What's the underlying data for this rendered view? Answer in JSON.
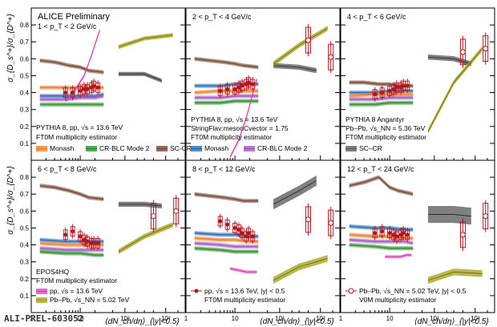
{
  "figure": {
    "collaboration": "ALICE Preliminary",
    "id_label": "ALI-PREL-603052",
    "y_axis_label": "σ_{D_s^+}/σ_{D^+}",
    "x_axis_label": "⟨dN_ch/dη⟩_{|y|<0.5}",
    "colors": {
      "data": "#b4141e",
      "monash": "#f0781e",
      "crblc": "#228b22",
      "sccr": "#6e3c28",
      "fmonash": "#1e64b4",
      "fcrblc": "#9b50be",
      "angantyr": "#555555",
      "epos_pp": "#dc3cb4",
      "epos_pbpb": "#a0a014"
    }
  },
  "chart_data": [
    {
      "type": "line",
      "panel": 1,
      "pt_label": "1 < p_T < 2 GeV/c",
      "ylim": [
        0.0,
        0.9
      ],
      "xlim_pp": [
        1,
        30
      ],
      "xlim_pbpb": [
        30,
        3000
      ],
      "x_scale": "log",
      "data_pp": {
        "x": [
          5,
          7,
          10,
          12,
          14,
          17,
          19,
          23
        ],
        "y": [
          0.4,
          0.4,
          0.41,
          0.42,
          0.42,
          0.43,
          0.44,
          0.43
        ]
      },
      "data_pbpb": {
        "x": [],
        "y": []
      },
      "pp_models": [
        {
          "key": "sccr",
          "x": [
            1.5,
            3,
            6,
            10,
            15,
            30
          ],
          "y": [
            0.59,
            0.58,
            0.56,
            0.55,
            0.53,
            0.52
          ]
        },
        {
          "key": "monash",
          "x": [
            1.5,
            5,
            10,
            20,
            30
          ],
          "y": [
            0.43,
            0.43,
            0.43,
            0.43,
            0.43
          ]
        },
        {
          "key": "crblc",
          "x": [
            1.5,
            5,
            10,
            20,
            30
          ],
          "y": [
            0.33,
            0.33,
            0.33,
            0.33,
            0.33
          ]
        },
        {
          "key": "fmonash",
          "x": [
            1.5,
            5,
            10,
            20,
            30
          ],
          "y": [
            0.38,
            0.38,
            0.38,
            0.38,
            0.39
          ]
        },
        {
          "key": "fcrblc",
          "x": [
            1.5,
            5,
            10,
            20,
            30
          ],
          "y": [
            0.36,
            0.36,
            0.37,
            0.37,
            0.38
          ]
        },
        {
          "key": "epos_pp",
          "x": [
            5,
            8,
            12,
            17,
            25
          ],
          "y": [
            0.35,
            0.42,
            0.5,
            0.62,
            0.77
          ]
        }
      ],
      "pbpb_models": [
        {
          "key": "angantyr",
          "x": [
            70,
            300,
            800
          ],
          "y": [
            0.51,
            0.51,
            0.47
          ],
          "band": 0.012
        },
        {
          "key": "epos_pbpb",
          "x": [
            70,
            300,
            1500
          ],
          "y": [
            0.67,
            0.72,
            0.74
          ],
          "band": 0.012
        }
      ],
      "annotations": []
    },
    {
      "type": "line",
      "panel": 2,
      "pt_label": "2 < p_T < 4 GeV/c",
      "ylim": [
        0.0,
        0.9
      ],
      "xlim_pp": [
        1,
        30
      ],
      "xlim_pbpb": [
        30,
        3000
      ],
      "x_scale": "log",
      "data_pp": {
        "x": [
          5,
          7,
          10,
          12,
          14,
          17,
          19,
          23
        ],
        "y": [
          0.41,
          0.42,
          0.42,
          0.43,
          0.44,
          0.45,
          0.46,
          0.45
        ]
      },
      "data_pbpb": {
        "x": [
          500,
          1800
        ],
        "y": [
          0.71,
          0.61
        ]
      },
      "pp_models": [
        {
          "key": "sccr",
          "x": [
            1.5,
            3,
            6,
            10,
            15,
            30
          ],
          "y": [
            0.6,
            0.59,
            0.58,
            0.57,
            0.56,
            0.55
          ]
        },
        {
          "key": "fmonash",
          "x": [
            1.5,
            5,
            10,
            20,
            30
          ],
          "y": [
            0.44,
            0.44,
            0.45,
            0.45,
            0.45
          ]
        },
        {
          "key": "monash",
          "x": [
            1.5,
            5,
            10,
            20,
            30
          ],
          "y": [
            0.4,
            0.41,
            0.41,
            0.41,
            0.41
          ]
        },
        {
          "key": "fcrblc",
          "x": [
            1.5,
            5,
            10,
            20,
            30
          ],
          "y": [
            0.37,
            0.37,
            0.38,
            0.38,
            0.38
          ]
        },
        {
          "key": "crblc",
          "x": [
            1.5,
            5,
            10,
            20,
            30
          ],
          "y": [
            0.34,
            0.34,
            0.35,
            0.35,
            0.35
          ]
        },
        {
          "key": "epos_pp",
          "x": [
            8,
            12,
            17,
            22,
            28
          ],
          "y": [
            0.02,
            0.12,
            0.25,
            0.37,
            0.48
          ]
        }
      ],
      "pbpb_models": [
        {
          "key": "angantyr",
          "x": [
            70,
            300,
            800
          ],
          "y": [
            0.56,
            0.55,
            0.53
          ],
          "band": 0.015
        },
        {
          "key": "epos_pbpb",
          "x": [
            70,
            300,
            1500
          ],
          "y": [
            0.57,
            0.68,
            0.78
          ],
          "band": 0.015
        }
      ],
      "annotations": []
    },
    {
      "type": "line",
      "panel": 3,
      "pt_label": "4 < p_T < 6 GeV/c",
      "ylim": [
        0.0,
        0.9
      ],
      "xlim_pp": [
        1,
        30
      ],
      "xlim_pbpb": [
        30,
        3000
      ],
      "x_scale": "log",
      "data_pp": {
        "x": [
          5,
          7,
          10,
          12,
          14,
          17,
          19,
          23
        ],
        "y": [
          0.39,
          0.4,
          0.41,
          0.42,
          0.43,
          0.43,
          0.44,
          0.44
        ]
      },
      "data_pbpb": {
        "x": [
          500,
          1800
        ],
        "y": [
          0.64,
          0.66
        ]
      },
      "pp_models": [
        {
          "key": "sccr",
          "x": [
            1.5,
            3,
            6,
            10,
            15,
            30
          ],
          "y": [
            0.46,
            0.46,
            0.45,
            0.45,
            0.44,
            0.44
          ]
        },
        {
          "key": "fmonash",
          "x": [
            1.5,
            5,
            10,
            20,
            30
          ],
          "y": [
            0.4,
            0.4,
            0.41,
            0.41,
            0.41
          ]
        },
        {
          "key": "monash",
          "x": [
            1.5,
            5,
            10,
            20,
            30
          ],
          "y": [
            0.38,
            0.39,
            0.39,
            0.39,
            0.39
          ]
        },
        {
          "key": "fcrblc",
          "x": [
            1.5,
            5,
            10,
            20,
            30
          ],
          "y": [
            0.36,
            0.36,
            0.37,
            0.37,
            0.37
          ]
        },
        {
          "key": "crblc",
          "x": [
            1.5,
            5,
            10,
            20,
            30
          ],
          "y": [
            0.33,
            0.33,
            0.34,
            0.34,
            0.34
          ]
        }
      ],
      "pbpb_models": [
        {
          "key": "angantyr",
          "x": [
            70,
            300,
            800
          ],
          "y": [
            0.61,
            0.6,
            0.57
          ],
          "band": 0.015
        },
        {
          "key": "epos_pbpb",
          "x": [
            70,
            300,
            1500
          ],
          "y": [
            0.17,
            0.46,
            0.66
          ],
          "band": 0.015
        }
      ],
      "annotations": []
    },
    {
      "type": "line",
      "panel": 4,
      "pt_label": "6 < p_T < 8 GeV/c",
      "ylim": [
        0.0,
        0.9
      ],
      "xlim_pp": [
        1,
        30
      ],
      "xlim_pbpb": [
        30,
        3000
      ],
      "x_scale": "log",
      "data_pp": {
        "x": [
          5,
          7,
          10,
          12,
          14,
          17,
          19,
          23
        ],
        "y": [
          0.46,
          0.48,
          0.45,
          0.43,
          0.42,
          0.41,
          0.41,
          0.41
        ]
      },
      "data_pbpb": {
        "x": [
          500,
          1800
        ],
        "y": [
          0.57,
          0.6
        ]
      },
      "pp_models": [
        {
          "key": "sccr",
          "x": [
            1.5,
            3,
            6,
            10,
            15,
            30
          ],
          "y": [
            0.75,
            0.74,
            0.72,
            0.7,
            0.68,
            0.67
          ]
        },
        {
          "key": "fmonash",
          "x": [
            1.5,
            5,
            10,
            20,
            30
          ],
          "y": [
            0.43,
            0.42,
            0.42,
            0.42,
            0.42
          ]
        },
        {
          "key": "monash",
          "x": [
            1.5,
            5,
            10,
            20,
            30
          ],
          "y": [
            0.41,
            0.4,
            0.4,
            0.4,
            0.4
          ]
        },
        {
          "key": "fcrblc",
          "x": [
            1.5,
            5,
            10,
            20,
            30
          ],
          "y": [
            0.38,
            0.37,
            0.37,
            0.37,
            0.37
          ]
        },
        {
          "key": "crblc",
          "x": [
            1.5,
            5,
            10,
            20,
            30
          ],
          "y": [
            0.36,
            0.35,
            0.35,
            0.34,
            0.34
          ]
        }
      ],
      "pbpb_models": [
        {
          "key": "angantyr",
          "x": [
            70,
            300,
            800
          ],
          "y": [
            0.64,
            0.64,
            0.63
          ],
          "band": 0.015
        },
        {
          "key": "epos_pbpb",
          "x": [
            70,
            300,
            1500
          ],
          "y": [
            0.36,
            0.45,
            0.52
          ],
          "band": 0.015
        }
      ],
      "annotations": [
        "EPOS4HQ",
        "FT0M multiplicity estimator"
      ],
      "legend": [
        {
          "key": "epos_pp",
          "label": "pp, √s = 13.6 TeV"
        },
        {
          "key": "epos_pbpb",
          "label": "Pb–Pb, √s_NN = 5.02 TeV"
        }
      ]
    },
    {
      "type": "line",
      "panel": 5,
      "pt_label": "8 < p_T < 12 GeV/c",
      "ylim": [
        0.0,
        0.9
      ],
      "xlim_pp": [
        1,
        30
      ],
      "xlim_pbpb": [
        30,
        3000
      ],
      "x_scale": "log",
      "data_pp": {
        "x": [
          5,
          7,
          10,
          12,
          14,
          17,
          19,
          23
        ],
        "y": [
          0.54,
          0.52,
          0.5,
          0.49,
          0.47,
          0.45,
          0.47,
          0.45
        ]
      },
      "data_pbpb": {
        "x": [
          500,
          1800
        ],
        "y": [
          0.55,
          0.53
        ]
      },
      "pp_models": [
        {
          "key": "sccr",
          "x": [
            1.5,
            3,
            6,
            10,
            15,
            30
          ],
          "y": [
            0.7,
            0.69,
            0.68,
            0.67,
            0.66,
            0.66
          ]
        },
        {
          "key": "fmonash",
          "x": [
            1.5,
            5,
            10,
            20,
            30
          ],
          "y": [
            0.47,
            0.46,
            0.46,
            0.45,
            0.45
          ]
        },
        {
          "key": "monash",
          "x": [
            1.5,
            5,
            10,
            20,
            30
          ],
          "y": [
            0.44,
            0.43,
            0.43,
            0.42,
            0.42
          ]
        },
        {
          "key": "fcrblc",
          "x": [
            1.5,
            5,
            10,
            20,
            30
          ],
          "y": [
            0.41,
            0.4,
            0.39,
            0.39,
            0.39
          ]
        },
        {
          "key": "crblc",
          "x": [
            1.5,
            5,
            10,
            20,
            30
          ],
          "y": [
            0.38,
            0.37,
            0.36,
            0.36,
            0.36
          ]
        },
        {
          "key": "epos_pp",
          "x": [
            8,
            12,
            17,
            22,
            28
          ],
          "y": [
            0.26,
            0.25,
            0.24,
            0.24,
            0.24
          ]
        }
      ],
      "pbpb_models": [
        {
          "key": "angantyr",
          "x": [
            70,
            300,
            800
          ],
          "y": [
            0.64,
            0.72,
            0.78
          ],
          "band": 0.03
        },
        {
          "key": "epos_pbpb",
          "x": [
            70,
            300,
            1500
          ],
          "y": [
            0.19,
            0.27,
            0.32
          ],
          "band": 0.02
        }
      ],
      "annotations": [],
      "legend": [
        {
          "key": "data_pp",
          "label": "pp, √s = 13.6 TeV, |y| < 0.5"
        },
        {
          "key": "data_pp_est",
          "label": "FT0M multiplicity estimator"
        }
      ]
    },
    {
      "type": "line",
      "panel": 6,
      "pt_label": "12 < p_T < 24 GeV/c",
      "ylim": [
        0.0,
        0.9
      ],
      "xlim_pp": [
        1,
        30
      ],
      "xlim_pbpb": [
        30,
        3000
      ],
      "x_scale": "log",
      "data_pp": {
        "x": [
          5,
          7,
          10,
          12,
          14,
          17,
          19,
          23
        ],
        "y": [
          0.47,
          0.48,
          0.47,
          0.46,
          0.45,
          0.46,
          0.47,
          0.46
        ]
      },
      "data_pbpb": {
        "x": [
          500,
          1800
        ],
        "y": [
          0.46,
          0.57
        ]
      },
      "pp_models": [
        {
          "key": "sccr",
          "x": [
            1.5,
            3,
            6,
            10,
            15,
            30
          ],
          "y": [
            0.75,
            0.77,
            0.8,
            0.74,
            0.72,
            0.7
          ]
        },
        {
          "key": "fmonash",
          "x": [
            1.5,
            5,
            10,
            20,
            30
          ],
          "y": [
            0.51,
            0.5,
            0.5,
            0.49,
            0.49
          ]
        },
        {
          "key": "monash",
          "x": [
            1.5,
            5,
            10,
            20,
            30
          ],
          "y": [
            0.46,
            0.45,
            0.45,
            0.44,
            0.44
          ]
        },
        {
          "key": "fcrblc",
          "x": [
            1.5,
            5,
            10,
            20,
            30
          ],
          "y": [
            0.43,
            0.42,
            0.42,
            0.42,
            0.41
          ]
        },
        {
          "key": "crblc",
          "x": [
            1.5,
            5,
            10,
            20,
            30
          ],
          "y": [
            0.4,
            0.39,
            0.38,
            0.38,
            0.38
          ]
        },
        {
          "key": "epos_pp",
          "x": [
            8,
            12,
            17,
            22,
            28
          ],
          "y": [
            0.33,
            0.33,
            0.33,
            0.34,
            0.34
          ]
        }
      ],
      "pbpb_models": [
        {
          "key": "angantyr",
          "x": [
            70,
            300,
            800
          ],
          "y": [
            0.58,
            0.58,
            0.57
          ],
          "band": 0.05
        },
        {
          "key": "epos_pbpb",
          "x": [
            70,
            300,
            1500
          ],
          "y": [
            0.19,
            0.24,
            0.23
          ],
          "band": 0.02
        }
      ],
      "annotations": [],
      "legend": [
        {
          "key": "data_pbpb",
          "label": "Pb–Pb, √s_NN = 5.02 TeV, |y| < 0.5"
        },
        {
          "key": "data_pbpb_est",
          "label": "V0M multiplicity estimator"
        }
      ]
    }
  ],
  "legend_panel1": {
    "header": "PYTHIA 8, pp, √s = 13.6 TeV",
    "subheader": "FT0M multiplicity estimator",
    "entries": [
      {
        "key": "monash",
        "label": "Monash"
      },
      {
        "key": "crblc",
        "label": "CR-BLC Mode 2"
      },
      {
        "key": "sccr",
        "label": "SC-CR"
      }
    ]
  },
  "legend_panel2": {
    "header": "PYTHIA 8, pp, √s = 13.6 TeV",
    "line2": "StringFlav:mesonCvector = 1.75",
    "subheader": "FT0M multiplicity estimator",
    "entries": [
      {
        "key": "fmonash",
        "label": "Monash"
      },
      {
        "key": "fcrblc",
        "label": "CR-BLC Mode 2"
      }
    ]
  },
  "legend_panel3": {
    "header": "PYTHIA 8 Angantyr",
    "line2": "Pb–Pb, √s_NN = 5.36 TeV",
    "subheader": "FT0M multiplicity estimator",
    "entries": [
      {
        "key": "angantyr",
        "label": "SC–CR"
      }
    ]
  },
  "axes": {
    "y_ticks": [
      0.1,
      0.2,
      0.3,
      0.4,
      0.5,
      0.6,
      0.7,
      0.8
    ],
    "x_ticks_pp": [
      {
        "v": 1,
        "label": "1"
      },
      {
        "v": 10,
        "label": "10"
      }
    ],
    "x_ticks_pbpb": [
      {
        "v": 100,
        "label": "10²"
      },
      {
        "v": 1000,
        "label": "10³"
      }
    ]
  }
}
